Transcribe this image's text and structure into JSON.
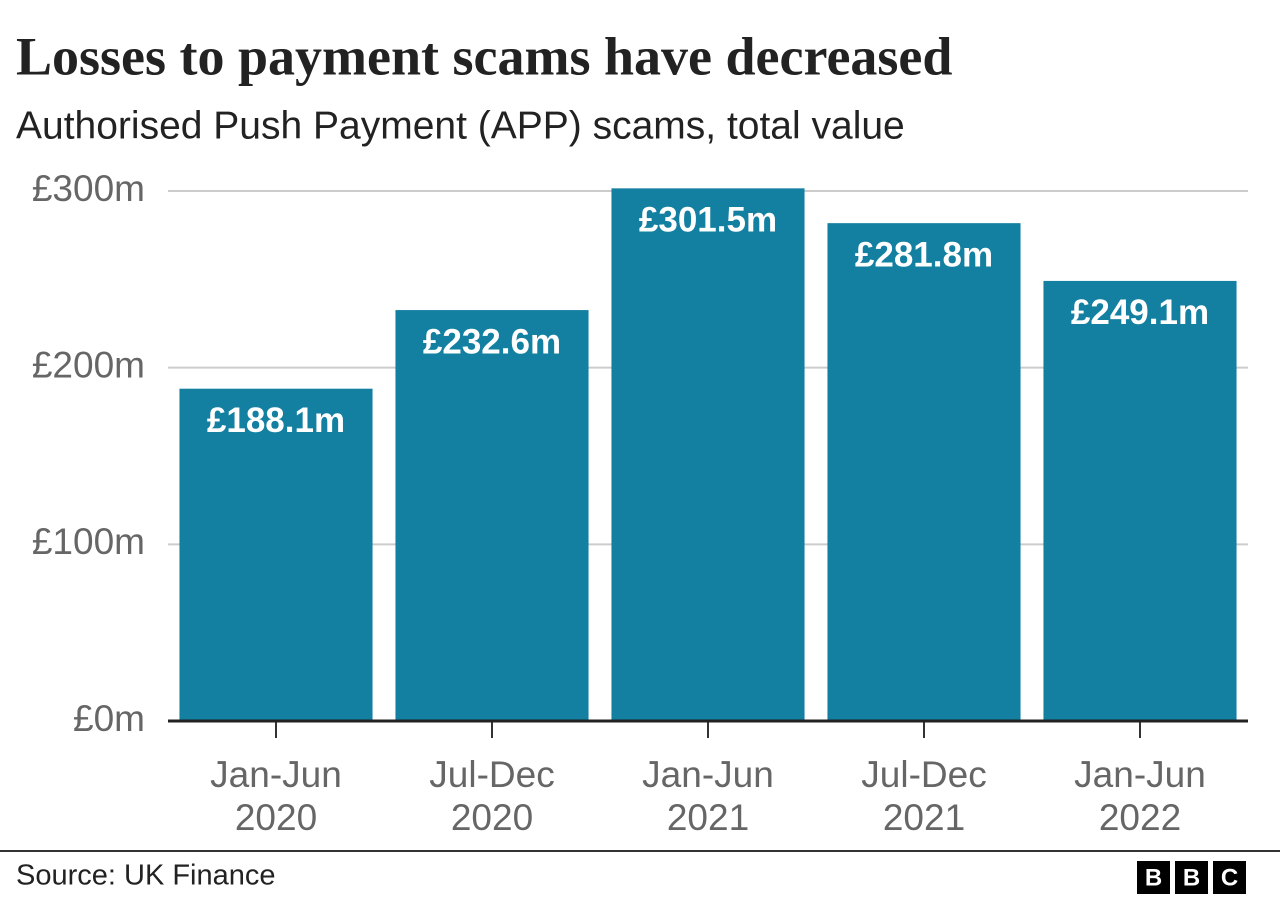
{
  "chart_data": {
    "type": "bar",
    "title": "Losses to payment scams have decreased",
    "subtitle": "Authorised Push Payment (APP) scams, total value",
    "categories": [
      "Jan-Jun 2020",
      "Jul-Dec 2020",
      "Jan-Jun 2021",
      "Jul-Dec 2021",
      "Jan-Jun 2022"
    ],
    "values": [
      188.1,
      232.6,
      301.5,
      281.8,
      249.1
    ],
    "value_labels": [
      "£188.1m",
      "£232.6m",
      "£301.5m",
      "£281.8m",
      "£249.1m"
    ],
    "color": "#1380a1",
    "ylim": [
      0,
      300
    ],
    "yticks": [
      {
        "value": 0,
        "label": "£0m"
      },
      {
        "value": 100,
        "label": "£100m"
      },
      {
        "value": 200,
        "label": "£200m"
      },
      {
        "value": 300,
        "label": "£300m"
      }
    ],
    "grid": true,
    "source": "Source: UK Finance",
    "logo": [
      "B",
      "B",
      "C"
    ]
  }
}
